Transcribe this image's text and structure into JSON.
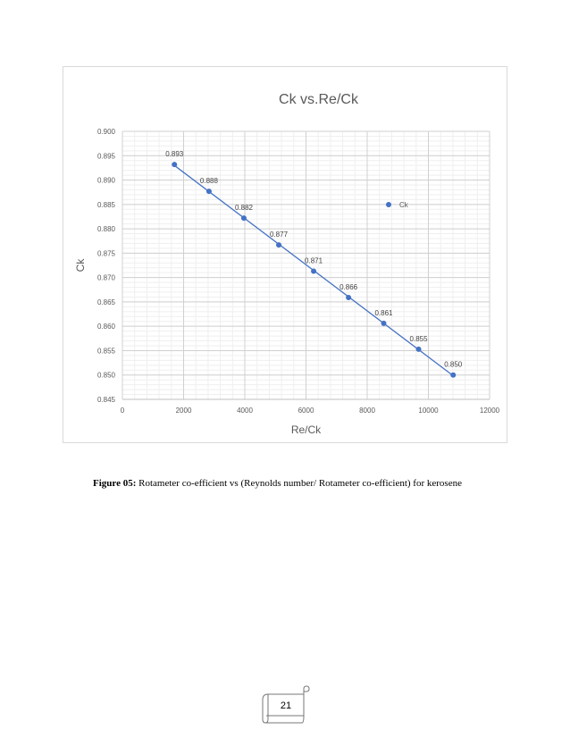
{
  "chart_data": {
    "type": "scatter",
    "title": "Ck vs.Re/Ck",
    "xlabel": "Re/Ck",
    "ylabel": "Ck",
    "xlim": [
      0,
      12000
    ],
    "ylim": [
      0.845,
      0.9
    ],
    "x_ticks": [
      "0",
      "2000",
      "4000",
      "6000",
      "8000",
      "10000",
      "12000"
    ],
    "y_ticks": [
      "0.845",
      "0.850",
      "0.855",
      "0.860",
      "0.865",
      "0.870",
      "0.875",
      "0.880",
      "0.885",
      "0.890",
      "0.895",
      "0.900"
    ],
    "grid": true,
    "trendline": true,
    "legend_position": "right",
    "series": [
      {
        "name": "Ck",
        "color": "#4472c4",
        "x": [
          1700,
          2830,
          3970,
          5110,
          6250,
          7390,
          8540,
          9680,
          10810
        ],
        "y": [
          0.8932,
          0.8877,
          0.8822,
          0.8767,
          0.8713,
          0.8659,
          0.8606,
          0.8553,
          0.85
        ],
        "labels": [
          "0.893",
          "0.888",
          "0.882",
          "0.877",
          "0.871",
          "0.866",
          "0.861",
          "0.855",
          "0.850"
        ]
      }
    ]
  },
  "caption": {
    "label": "Figure 05:",
    "text": " Rotameter co-efficient vs (Reynolds number/ Rotameter co-efficient) for kerosene"
  },
  "page_number": "21"
}
